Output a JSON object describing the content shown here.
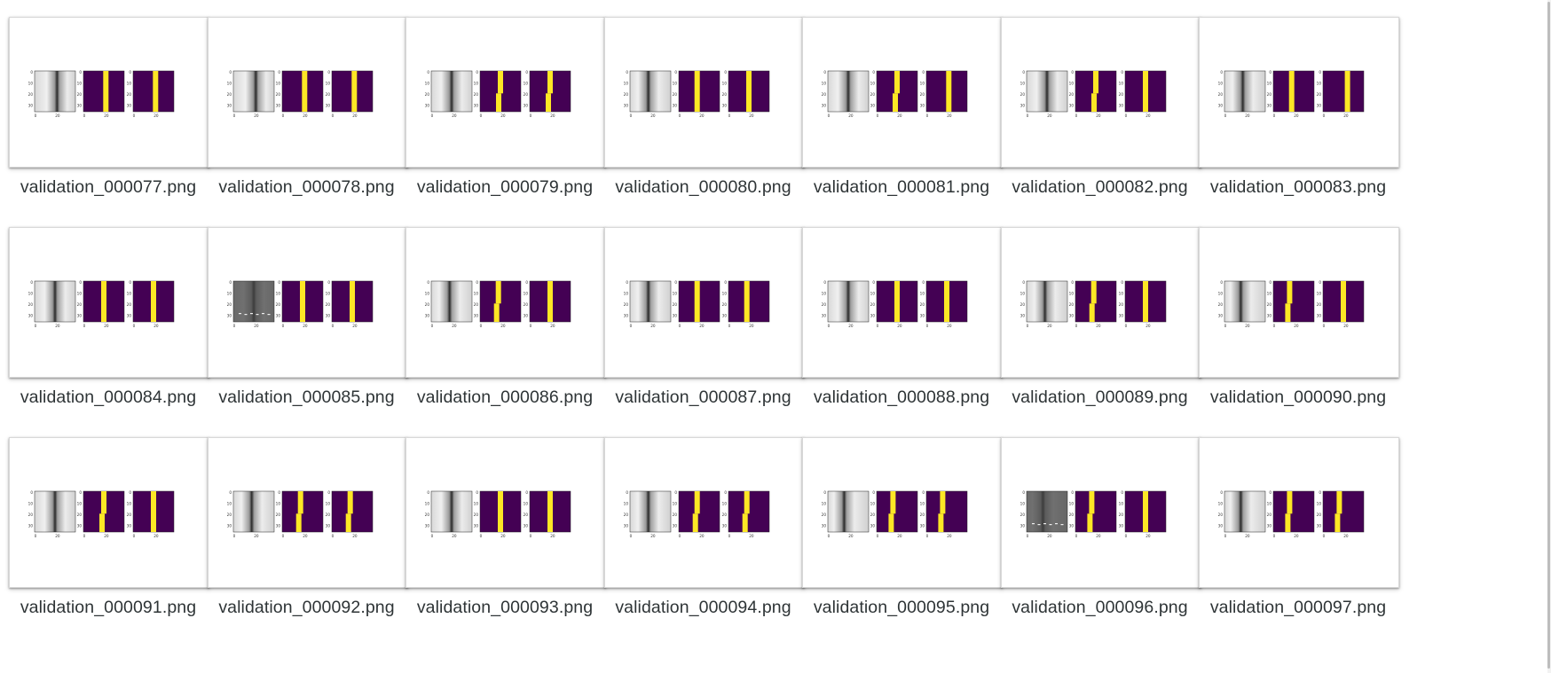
{
  "file_grid": {
    "items": [
      {
        "filename": "validation_000077.png",
        "gt_col": 22,
        "pred_col": 22,
        "gt_shift": 0,
        "pred_shift": 0,
        "noisy": false
      },
      {
        "filename": "validation_000078.png",
        "gt_col": 22,
        "pred_col": 22,
        "gt_shift": 0,
        "pred_shift": 0,
        "noisy": false
      },
      {
        "filename": "validation_000079.png",
        "gt_col": 20,
        "pred_col": 20,
        "gt_shift": 1,
        "pred_shift": 1,
        "noisy": false
      },
      {
        "filename": "validation_000080.png",
        "gt_col": 18,
        "pred_col": 20,
        "gt_shift": 0,
        "pred_shift": 0,
        "noisy": false
      },
      {
        "filename": "validation_000081.png",
        "gt_col": 20,
        "pred_col": 22,
        "gt_shift": 1,
        "pred_shift": 0,
        "noisy": false
      },
      {
        "filename": "validation_000082.png",
        "gt_col": 20,
        "pred_col": 20,
        "gt_shift": 1,
        "pred_shift": 0,
        "noisy": false
      },
      {
        "filename": "validation_000083.png",
        "gt_col": 18,
        "pred_col": 24,
        "gt_shift": 0,
        "pred_shift": 0,
        "noisy": false
      },
      {
        "filename": "validation_000084.png",
        "gt_col": 20,
        "pred_col": 20,
        "gt_shift": 0,
        "pred_shift": 0,
        "noisy": false
      },
      {
        "filename": "validation_000085.png",
        "gt_col": 20,
        "pred_col": 20,
        "gt_shift": 0,
        "pred_shift": 0,
        "noisy": true
      },
      {
        "filename": "validation_000086.png",
        "gt_col": 18,
        "pred_col": 20,
        "gt_shift": 1,
        "pred_shift": 0,
        "noisy": false
      },
      {
        "filename": "validation_000087.png",
        "gt_col": 18,
        "pred_col": 18,
        "gt_shift": 0,
        "pred_shift": 0,
        "noisy": false
      },
      {
        "filename": "validation_000088.png",
        "gt_col": 20,
        "pred_col": 20,
        "gt_shift": 0,
        "pred_shift": 0,
        "noisy": false
      },
      {
        "filename": "validation_000089.png",
        "gt_col": 18,
        "pred_col": 20,
        "gt_shift": 1,
        "pred_shift": 0,
        "noisy": false
      },
      {
        "filename": "validation_000090.png",
        "gt_col": 16,
        "pred_col": 20,
        "gt_shift": 1,
        "pred_shift": 0,
        "noisy": false
      },
      {
        "filename": "validation_000091.png",
        "gt_col": 20,
        "pred_col": 20,
        "gt_shift": 1,
        "pred_shift": 0,
        "noisy": false
      },
      {
        "filename": "validation_000092.png",
        "gt_col": 18,
        "pred_col": 18,
        "gt_shift": 1,
        "pred_shift": 1,
        "noisy": false
      },
      {
        "filename": "validation_000093.png",
        "gt_col": 20,
        "pred_col": 20,
        "gt_shift": 0,
        "pred_shift": 0,
        "noisy": false
      },
      {
        "filename": "validation_000094.png",
        "gt_col": 18,
        "pred_col": 18,
        "gt_shift": 1,
        "pred_shift": 1,
        "noisy": false
      },
      {
        "filename": "validation_000095.png",
        "gt_col": 16,
        "pred_col": 16,
        "gt_shift": 1,
        "pred_shift": 1,
        "noisy": false
      },
      {
        "filename": "validation_000096.png",
        "gt_col": 16,
        "pred_col": 20,
        "gt_shift": 1,
        "pred_shift": 0,
        "noisy": true
      },
      {
        "filename": "validation_000097.png",
        "gt_col": 16,
        "pred_col": 16,
        "gt_shift": 1,
        "pred_shift": 1,
        "noisy": false
      }
    ]
  },
  "thumbnail_plots": {
    "y_tick_labels": [
      "0",
      "10",
      "20",
      "30"
    ],
    "x_tick_labels": [
      "0",
      "20"
    ],
    "colors": {
      "mask_background": "#440154",
      "mask_foreground": "#fde725",
      "image_light": "#e8e8e8",
      "image_dark": "#2a2a2a"
    }
  }
}
